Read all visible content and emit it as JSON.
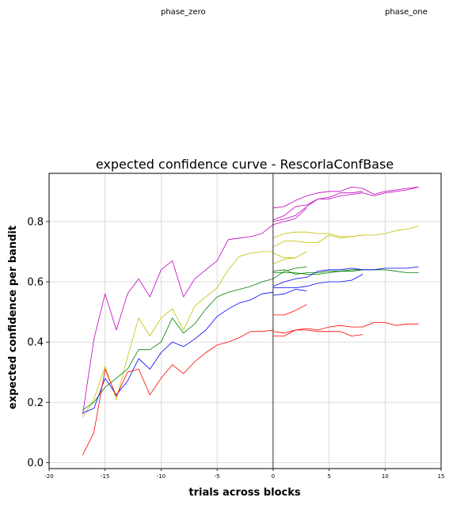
{
  "phase_labels": {
    "left": "phase_zero",
    "right": "phase_one"
  },
  "chart_data": {
    "type": "line",
    "title": "expected confidence curve - RescorlaConfBase",
    "xlabel": "trials across blocks",
    "ylabel": "expected confidence per bandit",
    "xlim": [
      -20,
      15
    ],
    "ylim": [
      -0.02,
      0.96
    ],
    "xticks": [
      -20,
      -15,
      -10,
      -5,
      0,
      5,
      10,
      15
    ],
    "yticks": [
      0.0,
      0.2,
      0.4,
      0.6,
      0.8
    ],
    "ytick_labels": [
      "0.0",
      "0.2",
      "0.4",
      "0.6",
      "0.8"
    ],
    "grid": true,
    "vline_x": 0,
    "colors": {
      "magenta": "#c000c0",
      "yellow": "#c0c000",
      "green": "#008000",
      "blue": "#0000ff",
      "red": "#ff0000"
    },
    "series": [
      {
        "color": "magenta",
        "x": [
          -17,
          -16,
          -15,
          -14,
          -13,
          -12,
          -11,
          -10,
          -9,
          -8,
          -7,
          -6,
          -5,
          -4,
          -3,
          -2,
          -1,
          0
        ],
        "y": [
          0.16,
          0.41,
          0.56,
          0.44,
          0.56,
          0.61,
          0.55,
          0.64,
          0.67,
          0.55,
          0.61,
          0.64,
          0.67,
          0.74,
          0.745,
          0.75,
          0.76,
          0.79
        ]
      },
      {
        "color": "yellow",
        "x": [
          -17,
          -16,
          -15,
          -14,
          -13,
          -12,
          -11,
          -10,
          -9,
          -8,
          -7,
          -6,
          -5,
          -4,
          -3,
          -2,
          -1,
          0
        ],
        "y": [
          0.15,
          0.21,
          0.32,
          0.21,
          0.35,
          0.48,
          0.42,
          0.48,
          0.51,
          0.44,
          0.52,
          0.55,
          0.58,
          0.64,
          0.685,
          0.695,
          0.7,
          0.7
        ]
      },
      {
        "color": "green",
        "x": [
          -17,
          -16,
          -15,
          -14,
          -13,
          -12,
          -11,
          -10,
          -9,
          -8,
          -7,
          -6,
          -5,
          -4,
          -3,
          -2,
          -1,
          0
        ],
        "y": [
          0.175,
          0.2,
          0.25,
          0.28,
          0.31,
          0.375,
          0.375,
          0.4,
          0.48,
          0.43,
          0.46,
          0.51,
          0.55,
          0.565,
          0.575,
          0.585,
          0.6,
          0.61
        ]
      },
      {
        "color": "blue",
        "x": [
          -17,
          -16,
          -15,
          -14,
          -13,
          -12,
          -11,
          -10,
          -9,
          -8,
          -7,
          -6,
          -5,
          -4,
          -3,
          -2,
          -1,
          0
        ],
        "y": [
          0.165,
          0.18,
          0.28,
          0.225,
          0.27,
          0.345,
          0.31,
          0.365,
          0.4,
          0.385,
          0.41,
          0.44,
          0.485,
          0.51,
          0.53,
          0.54,
          0.56,
          0.565
        ]
      },
      {
        "color": "red",
        "x": [
          -17,
          -16,
          -15,
          -14,
          -13,
          -12,
          -11,
          -10,
          -9,
          -8,
          -7,
          -6,
          -5,
          -4,
          -3,
          -2,
          -1,
          0
        ],
        "y": [
          0.025,
          0.1,
          0.31,
          0.22,
          0.3,
          0.31,
          0.225,
          0.28,
          0.325,
          0.295,
          0.335,
          0.365,
          0.39,
          0.4,
          0.415,
          0.435,
          0.435,
          0.44
        ]
      },
      {
        "color": "magenta",
        "x": [
          0,
          1,
          2,
          3,
          4,
          5,
          6,
          7,
          8,
          9,
          10,
          11,
          12,
          13
        ],
        "y": [
          0.845,
          0.85,
          0.87,
          0.885,
          0.895,
          0.9,
          0.9,
          0.915,
          0.91,
          0.89,
          0.9,
          0.905,
          0.91,
          0.915
        ]
      },
      {
        "color": "magenta",
        "x": [
          0,
          1,
          2,
          3,
          4,
          5,
          6,
          7,
          8,
          9,
          10,
          11,
          12,
          13
        ],
        "y": [
          0.805,
          0.82,
          0.85,
          0.855,
          0.875,
          0.875,
          0.885,
          0.89,
          0.895,
          0.885,
          0.895,
          0.9,
          0.905,
          0.915
        ]
      },
      {
        "color": "magenta",
        "x": [
          0,
          1,
          2,
          3,
          4,
          5,
          6,
          7,
          8
        ],
        "y": [
          0.8,
          0.808,
          0.82,
          0.85,
          0.875,
          0.88,
          0.895,
          0.895,
          0.9
        ]
      },
      {
        "color": "magenta",
        "x": [
          0,
          1,
          2,
          3
        ],
        "y": [
          0.79,
          0.8,
          0.81,
          0.845
        ]
      },
      {
        "color": "yellow",
        "x": [
          0,
          1,
          2,
          3,
          4,
          5,
          6,
          7,
          8,
          9,
          10,
          11,
          12,
          13
        ],
        "y": [
          0.745,
          0.76,
          0.765,
          0.765,
          0.76,
          0.76,
          0.75,
          0.75,
          0.755,
          0.755,
          0.76,
          0.77,
          0.775,
          0.785
        ]
      },
      {
        "color": "yellow",
        "x": [
          0,
          1,
          2,
          3,
          4,
          5,
          6,
          7,
          8
        ],
        "y": [
          0.715,
          0.735,
          0.735,
          0.73,
          0.73,
          0.755,
          0.745,
          0.75,
          0.755
        ]
      },
      {
        "color": "yellow",
        "x": [
          0,
          1,
          2,
          3
        ],
        "y": [
          0.695,
          0.68,
          0.68,
          0.7
        ]
      },
      {
        "color": "yellow",
        "x": [
          0,
          1,
          2
        ],
        "y": [
          0.66,
          0.675,
          0.68
        ]
      },
      {
        "color": "green",
        "x": [
          0,
          1,
          2,
          3,
          4,
          5,
          6,
          7,
          8,
          9,
          10,
          11,
          12,
          13
        ],
        "y": [
          0.63,
          0.63,
          0.63,
          0.625,
          0.625,
          0.63,
          0.635,
          0.635,
          0.64,
          0.64,
          0.64,
          0.635,
          0.63,
          0.63
        ]
      },
      {
        "color": "green",
        "x": [
          0,
          1,
          2,
          3,
          4,
          5,
          6,
          7,
          8
        ],
        "y": [
          0.635,
          0.64,
          0.625,
          0.63,
          0.63,
          0.635,
          0.635,
          0.64,
          0.64
        ]
      },
      {
        "color": "green",
        "x": [
          0,
          1,
          2,
          3
        ],
        "y": [
          0.61,
          0.635,
          0.645,
          0.65
        ]
      },
      {
        "color": "blue",
        "x": [
          0,
          1,
          2,
          3,
          4,
          5,
          6,
          7,
          8,
          9,
          10,
          11,
          12,
          13
        ],
        "y": [
          0.585,
          0.6,
          0.61,
          0.615,
          0.635,
          0.64,
          0.64,
          0.645,
          0.64,
          0.64,
          0.645,
          0.645,
          0.645,
          0.65
        ]
      },
      {
        "color": "blue",
        "x": [
          0,
          1,
          2,
          3,
          4,
          5,
          6,
          7,
          8
        ],
        "y": [
          0.58,
          0.58,
          0.58,
          0.585,
          0.595,
          0.6,
          0.6,
          0.605,
          0.625
        ]
      },
      {
        "color": "blue",
        "x": [
          0,
          1,
          2,
          3
        ],
        "y": [
          0.555,
          0.56,
          0.575,
          0.57
        ]
      },
      {
        "color": "red",
        "x": [
          0,
          1,
          2,
          3,
          4,
          5,
          6,
          7,
          8,
          9,
          10,
          11,
          12,
          13
        ],
        "y": [
          0.435,
          0.43,
          0.44,
          0.445,
          0.44,
          0.45,
          0.455,
          0.45,
          0.45,
          0.465,
          0.465,
          0.455,
          0.46,
          0.46
        ]
      },
      {
        "color": "red",
        "x": [
          0,
          1,
          2,
          3,
          4,
          5,
          6,
          7,
          8
        ],
        "y": [
          0.42,
          0.42,
          0.44,
          0.44,
          0.435,
          0.435,
          0.435,
          0.42,
          0.425
        ]
      },
      {
        "color": "red",
        "x": [
          0,
          1,
          2,
          3
        ],
        "y": [
          0.49,
          0.49,
          0.505,
          0.525
        ]
      }
    ]
  }
}
